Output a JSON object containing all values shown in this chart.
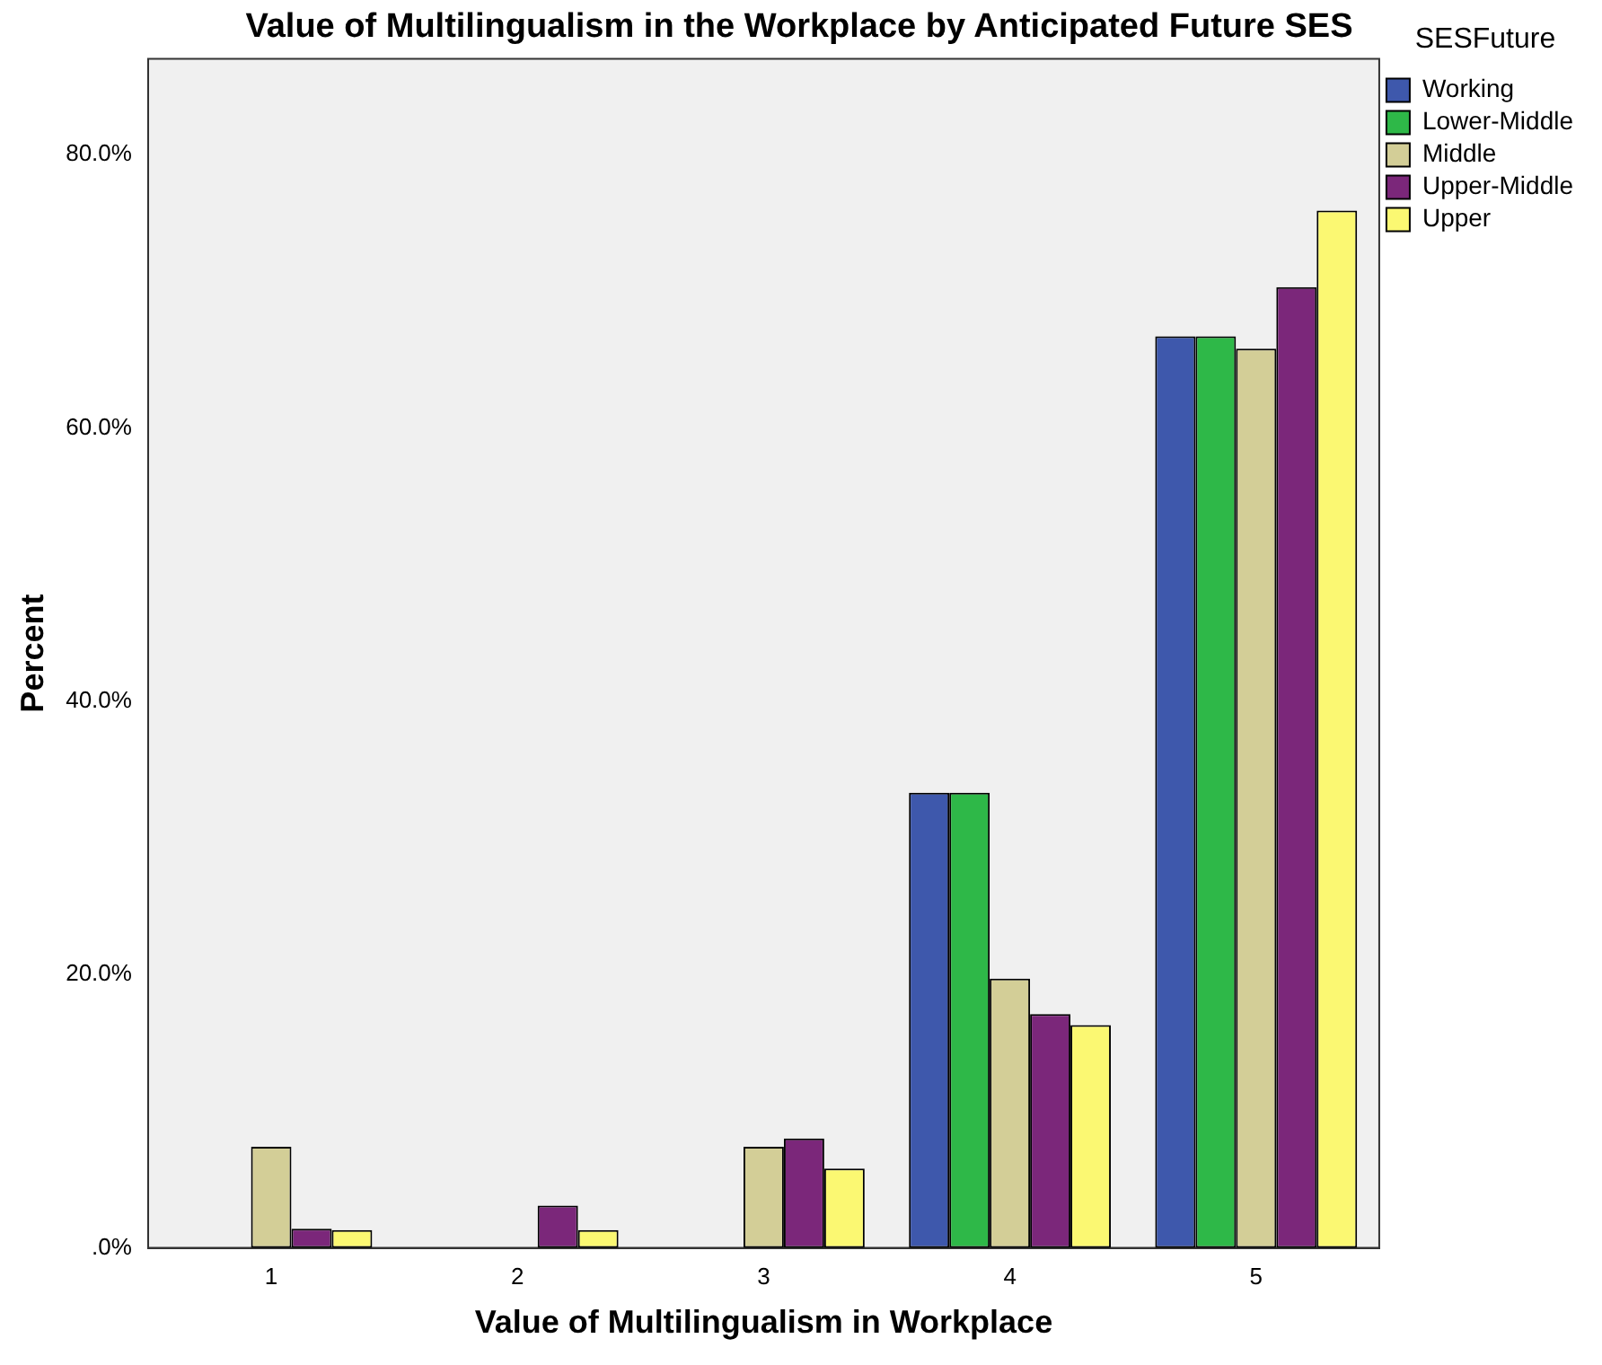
{
  "chart_data": {
    "type": "bar",
    "title": "Value of Multilingualism in the Workplace by Anticipated Future SES",
    "xlabel": "Value of Multilingualism in Workplace",
    "ylabel": "Percent",
    "legend_title": "SESFuture",
    "categories": [
      "1",
      "2",
      "3",
      "4",
      "5"
    ],
    "series": [
      {
        "name": "Working",
        "color": "#3e58ac",
        "values": [
          0,
          0,
          0,
          33.3,
          66.7
        ]
      },
      {
        "name": "Lower-Middle",
        "color": "#2eb848",
        "values": [
          0,
          0,
          0,
          33.3,
          66.7
        ]
      },
      {
        "name": "Middle",
        "color": "#d3ce97",
        "values": [
          7.4,
          0,
          7.4,
          19.7,
          65.8
        ]
      },
      {
        "name": "Upper-Middle",
        "color": "#7b277a",
        "values": [
          1.4,
          3.1,
          8.0,
          17.1,
          70.3
        ]
      },
      {
        "name": "Upper",
        "color": "#fbf872",
        "values": [
          1.3,
          1.3,
          5.8,
          16.3,
          75.9
        ]
      }
    ],
    "ylim": [
      0,
      87
    ],
    "yticks": [
      {
        "value": 0,
        "label": ".0%"
      },
      {
        "value": 20,
        "label": "20.0%"
      },
      {
        "value": 40,
        "label": "40.0%"
      },
      {
        "value": 60,
        "label": "60.0%"
      },
      {
        "value": 80,
        "label": "80.0%"
      }
    ],
    "grid": false,
    "legend": "top right"
  }
}
